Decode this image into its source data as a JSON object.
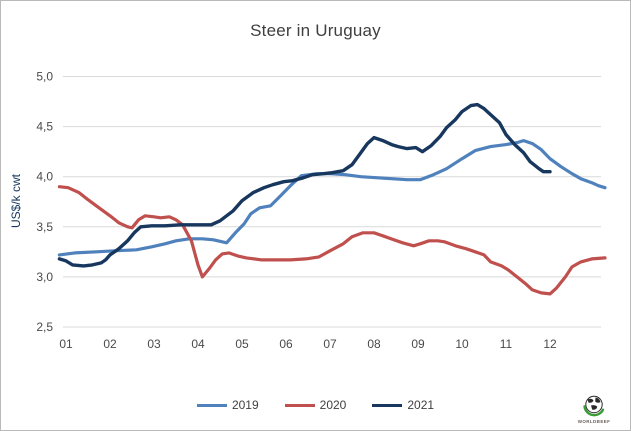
{
  "chart_data": {
    "type": "line",
    "title": "Steer in Uruguay",
    "ylabel": "US$/k cwt",
    "xlabel": "",
    "grid": true,
    "grid_color": "#d9d9d9",
    "legend_position": "bottom",
    "x_axis": {
      "unit": "month",
      "ticks": [
        {
          "pos": 1,
          "label": "01"
        },
        {
          "pos": 2,
          "label": "02"
        },
        {
          "pos": 3,
          "label": "03"
        },
        {
          "pos": 4,
          "label": "04"
        },
        {
          "pos": 5,
          "label": "05"
        },
        {
          "pos": 6,
          "label": "06"
        },
        {
          "pos": 7,
          "label": "07"
        },
        {
          "pos": 8,
          "label": "08"
        },
        {
          "pos": 9,
          "label": "09"
        },
        {
          "pos": 10,
          "label": "10"
        },
        {
          "pos": 11,
          "label": "11"
        },
        {
          "pos": 12,
          "label": "12"
        }
      ]
    },
    "y_axis": {
      "min": 2.5,
      "max": 5.0,
      "ticks": [
        {
          "value": 5.0,
          "label": "5,0"
        },
        {
          "value": 4.5,
          "label": "4,5"
        },
        {
          "value": 4.0,
          "label": "4,0"
        },
        {
          "value": 3.5,
          "label": "3,5"
        },
        {
          "value": 3.0,
          "label": "3,0"
        },
        {
          "value": 2.5,
          "label": "2,5"
        }
      ]
    },
    "series": [
      {
        "name": "2019",
        "color": "#4f81bd",
        "width": 3.2,
        "points": [
          [
            0.85,
            3.22
          ],
          [
            1.2,
            3.24
          ],
          [
            1.7,
            3.25
          ],
          [
            2.1,
            3.26
          ],
          [
            2.6,
            3.27
          ],
          [
            2.95,
            3.3
          ],
          [
            3.25,
            3.33
          ],
          [
            3.5,
            3.36
          ],
          [
            3.8,
            3.38
          ],
          [
            4.1,
            3.38
          ],
          [
            4.35,
            3.37
          ],
          [
            4.65,
            3.34
          ],
          [
            4.85,
            3.44
          ],
          [
            5.05,
            3.53
          ],
          [
            5.2,
            3.63
          ],
          [
            5.4,
            3.69
          ],
          [
            5.65,
            3.71
          ],
          [
            5.9,
            3.82
          ],
          [
            6.1,
            3.91
          ],
          [
            6.35,
            4.01
          ],
          [
            6.7,
            4.03
          ],
          [
            7.0,
            4.03
          ],
          [
            7.35,
            4.02
          ],
          [
            7.7,
            4.0
          ],
          [
            8.05,
            3.99
          ],
          [
            8.4,
            3.98
          ],
          [
            8.75,
            3.97
          ],
          [
            9.05,
            3.97
          ],
          [
            9.35,
            4.02
          ],
          [
            9.65,
            4.08
          ],
          [
            10.0,
            4.18
          ],
          [
            10.3,
            4.26
          ],
          [
            10.65,
            4.3
          ],
          [
            11.0,
            4.32
          ],
          [
            11.25,
            4.34
          ],
          [
            11.4,
            4.36
          ],
          [
            11.6,
            4.33
          ],
          [
            11.8,
            4.27
          ],
          [
            12.0,
            4.18
          ],
          [
            12.25,
            4.1
          ],
          [
            12.5,
            4.03
          ],
          [
            12.7,
            3.98
          ],
          [
            12.95,
            3.94
          ],
          [
            13.1,
            3.91
          ],
          [
            13.25,
            3.89
          ]
        ]
      },
      {
        "name": "2020",
        "color": "#c0504d",
        "width": 3.2,
        "points": [
          [
            0.85,
            3.9
          ],
          [
            1.05,
            3.89
          ],
          [
            1.3,
            3.84
          ],
          [
            1.5,
            3.77
          ],
          [
            1.75,
            3.69
          ],
          [
            2.0,
            3.61
          ],
          [
            2.2,
            3.54
          ],
          [
            2.4,
            3.5
          ],
          [
            2.5,
            3.49
          ],
          [
            2.65,
            3.57
          ],
          [
            2.8,
            3.61
          ],
          [
            3.0,
            3.6
          ],
          [
            3.15,
            3.59
          ],
          [
            3.35,
            3.6
          ],
          [
            3.5,
            3.57
          ],
          [
            3.65,
            3.52
          ],
          [
            3.85,
            3.36
          ],
          [
            4.0,
            3.12
          ],
          [
            4.1,
            3.0
          ],
          [
            4.25,
            3.08
          ],
          [
            4.4,
            3.17
          ],
          [
            4.55,
            3.23
          ],
          [
            4.7,
            3.24
          ],
          [
            4.9,
            3.21
          ],
          [
            5.1,
            3.19
          ],
          [
            5.45,
            3.17
          ],
          [
            5.75,
            3.17
          ],
          [
            6.1,
            3.17
          ],
          [
            6.45,
            3.18
          ],
          [
            6.75,
            3.2
          ],
          [
            7.0,
            3.26
          ],
          [
            7.3,
            3.33
          ],
          [
            7.5,
            3.4
          ],
          [
            7.75,
            3.44
          ],
          [
            8.0,
            3.44
          ],
          [
            8.2,
            3.41
          ],
          [
            8.45,
            3.37
          ],
          [
            8.65,
            3.34
          ],
          [
            8.9,
            3.31
          ],
          [
            9.05,
            3.33
          ],
          [
            9.25,
            3.36
          ],
          [
            9.45,
            3.36
          ],
          [
            9.6,
            3.35
          ],
          [
            9.85,
            3.31
          ],
          [
            10.1,
            3.28
          ],
          [
            10.3,
            3.25
          ],
          [
            10.5,
            3.22
          ],
          [
            10.65,
            3.15
          ],
          [
            10.9,
            3.11
          ],
          [
            11.05,
            3.07
          ],
          [
            11.25,
            3.0
          ],
          [
            11.45,
            2.93
          ],
          [
            11.6,
            2.87
          ],
          [
            11.8,
            2.84
          ],
          [
            12.0,
            2.83
          ],
          [
            12.15,
            2.89
          ],
          [
            12.35,
            3.0
          ],
          [
            12.5,
            3.1
          ],
          [
            12.7,
            3.15
          ],
          [
            12.95,
            3.18
          ],
          [
            13.25,
            3.19
          ]
        ]
      },
      {
        "name": "2021",
        "color": "#17375e",
        "width": 3.4,
        "points": [
          [
            0.85,
            3.18
          ],
          [
            1.0,
            3.16
          ],
          [
            1.15,
            3.12
          ],
          [
            1.4,
            3.11
          ],
          [
            1.6,
            3.12
          ],
          [
            1.8,
            3.14
          ],
          [
            1.9,
            3.17
          ],
          [
            2.0,
            3.22
          ],
          [
            2.2,
            3.28
          ],
          [
            2.4,
            3.36
          ],
          [
            2.55,
            3.44
          ],
          [
            2.7,
            3.5
          ],
          [
            2.95,
            3.51
          ],
          [
            3.25,
            3.51
          ],
          [
            3.6,
            3.52
          ],
          [
            3.95,
            3.52
          ],
          [
            4.3,
            3.52
          ],
          [
            4.5,
            3.56
          ],
          [
            4.8,
            3.66
          ],
          [
            5.0,
            3.76
          ],
          [
            5.25,
            3.84
          ],
          [
            5.5,
            3.89
          ],
          [
            5.7,
            3.92
          ],
          [
            5.95,
            3.95
          ],
          [
            6.15,
            3.96
          ],
          [
            6.4,
            3.99
          ],
          [
            6.6,
            4.02
          ],
          [
            6.85,
            4.03
          ],
          [
            7.05,
            4.04
          ],
          [
            7.3,
            4.06
          ],
          [
            7.5,
            4.12
          ],
          [
            7.65,
            4.21
          ],
          [
            7.85,
            4.33
          ],
          [
            8.0,
            4.39
          ],
          [
            8.2,
            4.36
          ],
          [
            8.4,
            4.32
          ],
          [
            8.55,
            4.3
          ],
          [
            8.75,
            4.28
          ],
          [
            8.95,
            4.29
          ],
          [
            9.1,
            4.25
          ],
          [
            9.3,
            4.31
          ],
          [
            9.5,
            4.4
          ],
          [
            9.65,
            4.49
          ],
          [
            9.85,
            4.57
          ],
          [
            10.0,
            4.65
          ],
          [
            10.2,
            4.71
          ],
          [
            10.35,
            4.72
          ],
          [
            10.5,
            4.68
          ],
          [
            10.65,
            4.62
          ],
          [
            10.85,
            4.54
          ],
          [
            11.0,
            4.42
          ],
          [
            11.2,
            4.32
          ],
          [
            11.4,
            4.24
          ],
          [
            11.55,
            4.15
          ],
          [
            11.75,
            4.08
          ],
          [
            11.85,
            4.05
          ],
          [
            12.0,
            4.05
          ]
        ]
      }
    ]
  },
  "logo": {
    "text": "WORLDBEEF",
    "globe_color": "#1f1f1f",
    "swoosh_color": "#3a9a35"
  }
}
